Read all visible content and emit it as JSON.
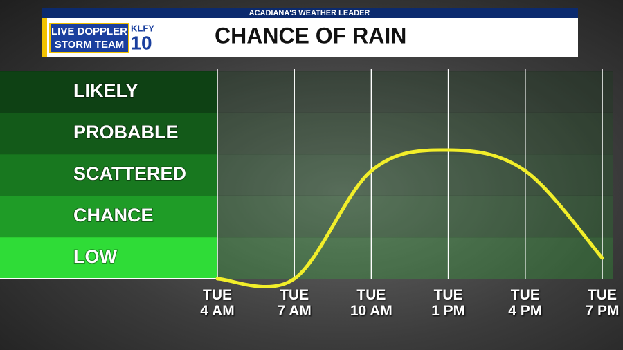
{
  "chart_data": {
    "type": "line",
    "title": "CHANCE OF RAIN",
    "banner": "ACADIANA'S WEATHER LEADER",
    "logo": [
      "LIVE DOPPLER",
      "STORM TEAM",
      "KLFY",
      "10"
    ],
    "categories": [
      "TUE\n4 AM",
      "TUE\n7 AM",
      "TUE\n10 AM",
      "TUE\n1 PM",
      "TUE\n4 PM",
      "TUE\n7 PM"
    ],
    "series": [
      {
        "color": "#f2ee2a",
        "values": [
          0,
          0,
          2.6,
          3.1,
          2.6,
          0.5
        ]
      }
    ],
    "ylim": [
      0,
      5
    ],
    "yticks": [
      {
        "value": 0.5,
        "label": "LOW"
      },
      {
        "value": 1.5,
        "label": "CHANCE"
      },
      {
        "value": 2.5,
        "label": "SCATTERED"
      },
      {
        "value": 3.5,
        "label": "PROBABLE"
      },
      {
        "value": 4.5,
        "label": "LIKELY"
      }
    ],
    "band_colors": [
      "#2fdc37",
      "#1f9c27",
      "#18781f",
      "#135a19",
      "#0e4114"
    ]
  }
}
